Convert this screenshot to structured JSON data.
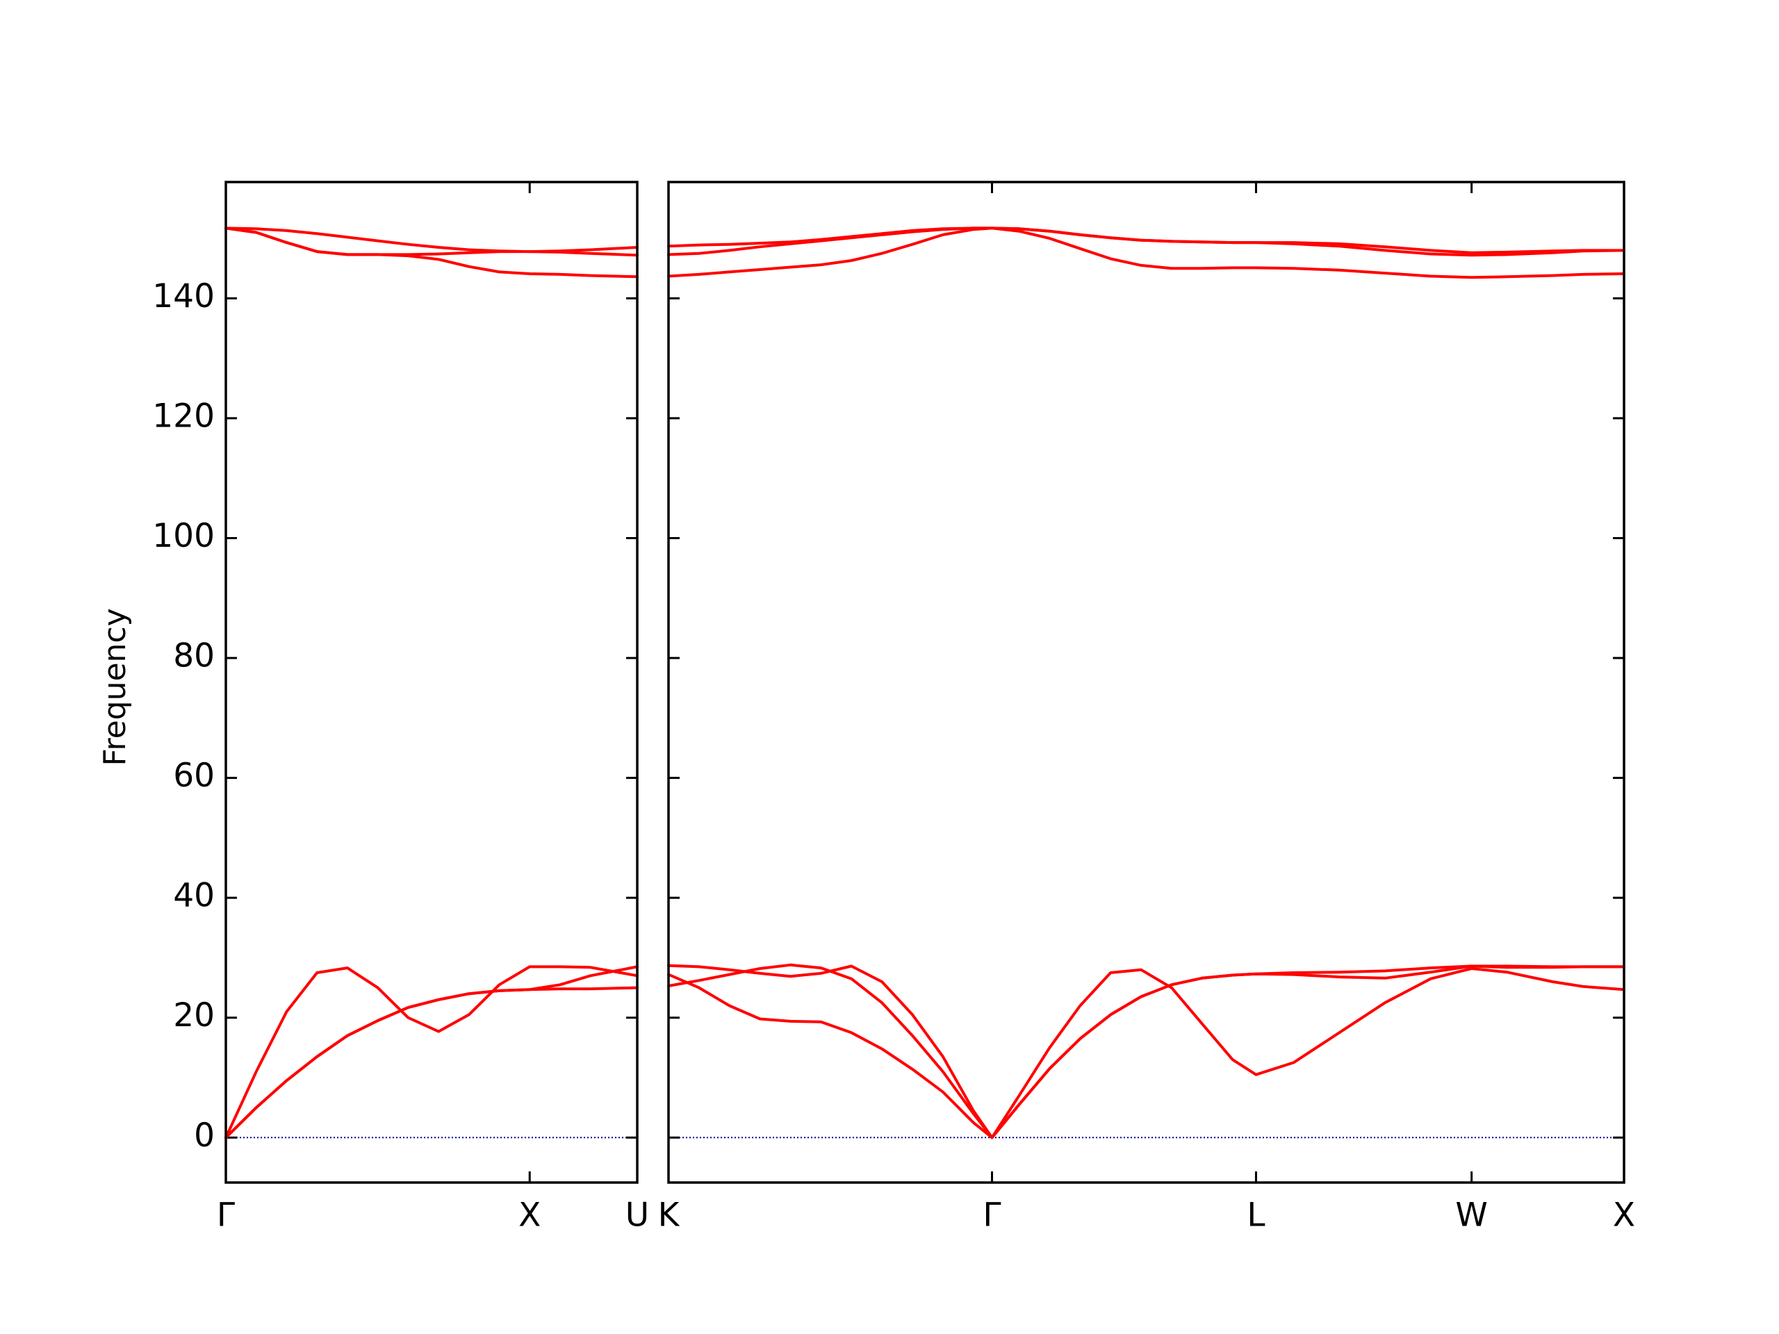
{
  "chart_data": [
    {
      "type": "line",
      "ylabel": "Frequency",
      "color": "#ff0000",
      "zero_line": {
        "y": 0,
        "color": "#00008b"
      },
      "x": [
        0,
        0.1,
        0.2,
        0.3,
        0.4,
        0.5,
        0.6,
        0.7,
        0.8,
        0.9,
        1.0,
        1.1,
        1.2,
        1.354
      ],
      "series": [
        {
          "values": [
            0,
            11,
            21,
            27.5,
            28.3,
            25,
            20,
            17.7,
            20.5,
            25.5,
            28.5,
            28.5,
            28.4,
            27
          ]
        },
        {
          "values": [
            0,
            5,
            9.5,
            13.5,
            17,
            19.5,
            21.7,
            23,
            24,
            24.5,
            24.7,
            24.8,
            24.8,
            25.0
          ]
        },
        {
          "values": [
            0,
            5,
            9.5,
            13.5,
            17,
            19.5,
            21.7,
            23,
            24,
            24.5,
            24.7,
            25.5,
            27,
            28.5
          ]
        },
        {
          "values": [
            151.7,
            151.6,
            151.3,
            150.8,
            150.2,
            149.6,
            149,
            148.5,
            148.1,
            147.9,
            147.8,
            147.9,
            148.1,
            148.5
          ]
        },
        {
          "values": [
            151.7,
            151,
            149.3,
            147.8,
            147.3,
            147.3,
            147.3,
            147.4,
            147.6,
            147.8,
            147.8,
            147.7,
            147.5,
            147.2
          ]
        },
        {
          "values": [
            151.7,
            151,
            149.3,
            147.8,
            147.3,
            147.3,
            147.1,
            146.5,
            145.3,
            144.4,
            144.1,
            144,
            143.8,
            143.6
          ]
        }
      ],
      "xlim": [
        0,
        1.354
      ],
      "xticks": [
        {
          "value": 0,
          "label": "Γ"
        },
        {
          "value": 1.0,
          "label": "X"
        },
        {
          "value": 1.354,
          "label": "U"
        }
      ],
      "ylim": [
        -7.5,
        159.4
      ],
      "yticks": [
        0,
        20,
        40,
        60,
        80,
        100,
        120,
        140
      ]
    },
    {
      "type": "line",
      "color": "#ff0000",
      "zero_line": {
        "y": 0,
        "color": "#00008b"
      },
      "ytick_labels": false,
      "x": [
        0,
        0.1,
        0.2,
        0.3,
        0.4,
        0.5,
        0.6,
        0.7,
        0.8,
        0.9,
        1.0,
        1.061,
        1.15,
        1.25,
        1.35,
        1.45,
        1.55,
        1.65,
        1.75,
        1.85,
        1.927,
        2.05,
        2.2,
        2.35,
        2.5,
        2.634,
        2.75,
        2.9,
        3.0,
        3.134
      ],
      "series": [
        {
          "values": [
            27.2,
            25,
            22,
            19.8,
            19.4,
            19.3,
            17.5,
            14.8,
            11.4,
            7.6,
            2.5,
            0,
            7,
            15,
            22,
            27.5,
            28,
            25,
            19,
            13,
            10.5,
            12.5,
            17.5,
            22.5,
            26.5,
            28.2,
            27.6,
            26,
            25.2,
            24.7
          ]
        },
        {
          "values": [
            25.3,
            26.2,
            27.2,
            28.2,
            28.8,
            28.3,
            26.5,
            22.5,
            17,
            11,
            4,
            0,
            5.5,
            11.5,
            16.5,
            20.5,
            23.5,
            25.5,
            26.6,
            27.1,
            27.3,
            27.2,
            26.8,
            26.6,
            27.6,
            28.6,
            28.6,
            28.5,
            28.5,
            28.5
          ]
        },
        {
          "values": [
            28.7,
            28.5,
            28,
            27.4,
            26.9,
            27.4,
            28.6,
            26,
            20.5,
            13.5,
            4.5,
            0,
            5.5,
            11.5,
            16.5,
            20.5,
            23.5,
            25.5,
            26.6,
            27.1,
            27.3,
            27.5,
            27.6,
            27.8,
            28.3,
            28.6,
            28.4,
            28.4,
            28.5,
            28.5
          ]
        },
        {
          "values": [
            148.7,
            148.9,
            149.0,
            149.2,
            149.4,
            149.8,
            150.3,
            150.8,
            151.3,
            151.6,
            151.7,
            151.7,
            151.6,
            151.2,
            150.6,
            150.1,
            149.7,
            149.5,
            149.4,
            149.3,
            149.3,
            149.3,
            149.1,
            148.6,
            148.0,
            147.6,
            147.7,
            147.9,
            148.0,
            148.0
          ]
        },
        {
          "values": [
            147.3,
            147.5,
            148,
            148.6,
            149.1,
            149.6,
            150.1,
            150.6,
            151.1,
            151.5,
            151.7,
            151.7,
            151.6,
            151.2,
            150.6,
            150.1,
            149.7,
            149.5,
            149.4,
            149.3,
            149.3,
            149.1,
            148.7,
            148.0,
            147.4,
            147.2,
            147.3,
            147.6,
            147.9,
            148.0
          ]
        },
        {
          "values": [
            143.7,
            144.0,
            144.4,
            144.8,
            145.2,
            145.6,
            146.3,
            147.5,
            149,
            150.6,
            151.5,
            151.7,
            151.2,
            150,
            148.3,
            146.6,
            145.5,
            145.0,
            145.0,
            145.1,
            145.1,
            145.0,
            144.7,
            144.2,
            143.7,
            143.5,
            143.6,
            143.8,
            144.0,
            144.1
          ]
        }
      ],
      "xlim": [
        0,
        3.134
      ],
      "xticks": [
        {
          "value": 0,
          "label": "K"
        },
        {
          "value": 1.061,
          "label": "Γ"
        },
        {
          "value": 1.927,
          "label": "L"
        },
        {
          "value": 2.634,
          "label": "W"
        },
        {
          "value": 3.134,
          "label": "X"
        }
      ],
      "ylim": [
        -7.5,
        159.4
      ],
      "yticks": [
        0,
        20,
        40,
        60,
        80,
        100,
        120,
        140
      ]
    }
  ]
}
